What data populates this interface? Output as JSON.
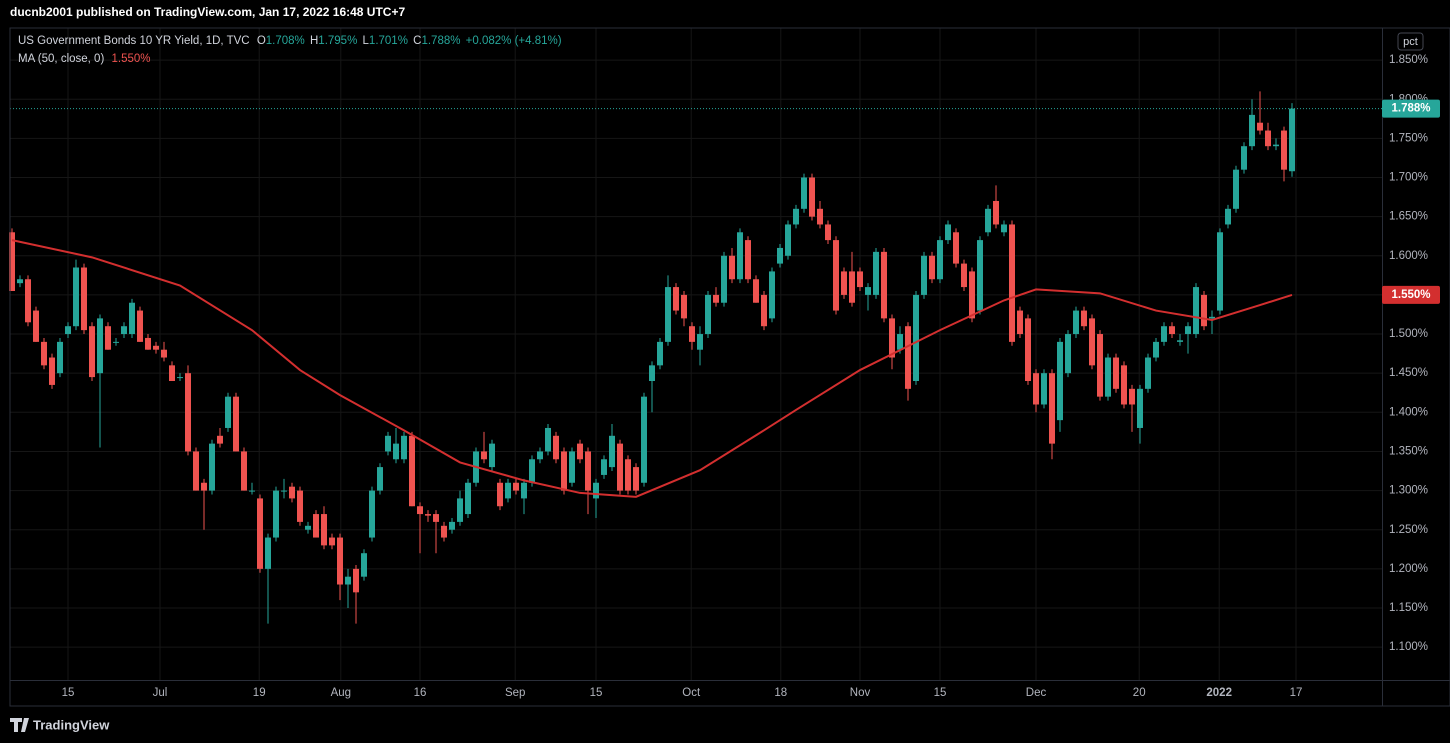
{
  "header": {
    "publisher": "ducnb2001 published on TradingView.com, Jan 17, 2022 16:48 UTC+7"
  },
  "chart_data": {
    "type": "candlestick",
    "title": "US Government Bonds 10 YR Yield, 1D, TVC",
    "ohlc_legend": [
      {
        "label": "O",
        "value": "1.708%"
      },
      {
        "label": "H",
        "value": "1.795%"
      },
      {
        "label": "L",
        "value": "1.701%"
      },
      {
        "label": "C",
        "value": "1.788%"
      }
    ],
    "change": "+0.082% (+4.81%)",
    "up_color": "#26a69a",
    "down_color": "#ef5350",
    "candles": [
      [
        1.63,
        1.635,
        1.555,
        1.555
      ],
      [
        1.565,
        1.575,
        1.56,
        1.57
      ],
      [
        1.57,
        1.575,
        1.51,
        1.515
      ],
      [
        1.53,
        1.535,
        1.49,
        1.49
      ],
      [
        1.49,
        1.495,
        1.455,
        1.46
      ],
      [
        1.47,
        1.475,
        1.43,
        1.435
      ],
      [
        1.45,
        1.495,
        1.445,
        1.49
      ],
      [
        1.5,
        1.515,
        1.495,
        1.51
      ],
      [
        1.51,
        1.595,
        1.505,
        1.585
      ],
      [
        1.585,
        1.59,
        1.5,
        1.505
      ],
      [
        1.51,
        1.515,
        1.44,
        1.445
      ],
      [
        1.45,
        1.525,
        1.355,
        1.52
      ],
      [
        1.51,
        1.515,
        1.48,
        1.48
      ],
      [
        1.49,
        1.495,
        1.485,
        1.49
      ],
      [
        1.5,
        1.515,
        1.495,
        1.51
      ],
      [
        1.5,
        1.545,
        1.495,
        1.54
      ],
      [
        1.53,
        1.535,
        1.49,
        1.49
      ],
      [
        1.495,
        1.5,
        1.48,
        1.48
      ],
      [
        1.485,
        1.49,
        1.475,
        1.48
      ],
      [
        1.48,
        1.49,
        1.465,
        1.47
      ],
      [
        1.46,
        1.465,
        1.44,
        1.44
      ],
      [
        1.445,
        1.45,
        1.44,
        1.445
      ],
      [
        1.45,
        1.46,
        1.345,
        1.35
      ],
      [
        1.35,
        1.355,
        1.3,
        1.3
      ],
      [
        1.31,
        1.315,
        1.25,
        1.3
      ],
      [
        1.3,
        1.365,
        1.295,
        1.36
      ],
      [
        1.37,
        1.38,
        1.355,
        1.36
      ],
      [
        1.38,
        1.425,
        1.375,
        1.42
      ],
      [
        1.42,
        1.425,
        1.35,
        1.35
      ],
      [
        1.35,
        1.355,
        1.3,
        1.3
      ],
      [
        1.3,
        1.31,
        1.295,
        1.3
      ],
      [
        1.29,
        1.295,
        1.195,
        1.2
      ],
      [
        1.2,
        1.245,
        1.13,
        1.24
      ],
      [
        1.24,
        1.305,
        1.235,
        1.3
      ],
      [
        1.3,
        1.315,
        1.29,
        1.3
      ],
      [
        1.305,
        1.31,
        1.285,
        1.29
      ],
      [
        1.3,
        1.305,
        1.255,
        1.26
      ],
      [
        1.25,
        1.26,
        1.245,
        1.255
      ],
      [
        1.27,
        1.275,
        1.24,
        1.24
      ],
      [
        1.27,
        1.28,
        1.225,
        1.23
      ],
      [
        1.24,
        1.245,
        1.225,
        1.23
      ],
      [
        1.24,
        1.245,
        1.16,
        1.18
      ],
      [
        1.18,
        1.2,
        1.15,
        1.19
      ],
      [
        1.2,
        1.205,
        1.13,
        1.17
      ],
      [
        1.19,
        1.225,
        1.185,
        1.22
      ],
      [
        1.24,
        1.305,
        1.235,
        1.3
      ],
      [
        1.3,
        1.335,
        1.295,
        1.33
      ],
      [
        1.35,
        1.375,
        1.345,
        1.37
      ],
      [
        1.34,
        1.38,
        1.335,
        1.36
      ],
      [
        1.34,
        1.375,
        1.335,
        1.37
      ],
      [
        1.37,
        1.375,
        1.28,
        1.28
      ],
      [
        1.28,
        1.285,
        1.22,
        1.27
      ],
      [
        1.27,
        1.275,
        1.26,
        1.268
      ],
      [
        1.27,
        1.275,
        1.22,
        1.26
      ],
      [
        1.255,
        1.26,
        1.235,
        1.24
      ],
      [
        1.25,
        1.265,
        1.245,
        1.26
      ],
      [
        1.26,
        1.3,
        1.255,
        1.29
      ],
      [
        1.27,
        1.315,
        1.265,
        1.31
      ],
      [
        1.31,
        1.355,
        1.305,
        1.35
      ],
      [
        1.35,
        1.375,
        1.335,
        1.34
      ],
      [
        1.33,
        1.365,
        1.325,
        1.36
      ],
      [
        1.31,
        1.315,
        1.275,
        1.28
      ],
      [
        1.29,
        1.315,
        1.285,
        1.31
      ],
      [
        1.31,
        1.315,
        1.295,
        1.3
      ],
      [
        1.29,
        1.315,
        1.27,
        1.31
      ],
      [
        1.31,
        1.345,
        1.305,
        1.34
      ],
      [
        1.34,
        1.355,
        1.335,
        1.35
      ],
      [
        1.35,
        1.385,
        1.345,
        1.38
      ],
      [
        1.37,
        1.375,
        1.335,
        1.34
      ],
      [
        1.35,
        1.355,
        1.295,
        1.3
      ],
      [
        1.31,
        1.355,
        1.305,
        1.35
      ],
      [
        1.36,
        1.365,
        1.335,
        1.34
      ],
      [
        1.35,
        1.355,
        1.27,
        1.3
      ],
      [
        1.29,
        1.315,
        1.265,
        1.31
      ],
      [
        1.32,
        1.345,
        1.315,
        1.34
      ],
      [
        1.33,
        1.385,
        1.325,
        1.37
      ],
      [
        1.36,
        1.365,
        1.295,
        1.3
      ],
      [
        1.34,
        1.345,
        1.295,
        1.3
      ],
      [
        1.33,
        1.335,
        1.295,
        1.3
      ],
      [
        1.31,
        1.425,
        1.305,
        1.42
      ],
      [
        1.44,
        1.465,
        1.4,
        1.46
      ],
      [
        1.46,
        1.495,
        1.455,
        1.49
      ],
      [
        1.49,
        1.575,
        1.485,
        1.56
      ],
      [
        1.56,
        1.565,
        1.525,
        1.53
      ],
      [
        1.55,
        1.555,
        1.51,
        1.52
      ],
      [
        1.51,
        1.515,
        1.48,
        1.49
      ],
      [
        1.48,
        1.51,
        1.46,
        1.5
      ],
      [
        1.5,
        1.555,
        1.495,
        1.55
      ],
      [
        1.55,
        1.56,
        1.535,
        1.54
      ],
      [
        1.54,
        1.605,
        1.535,
        1.6
      ],
      [
        1.6,
        1.61,
        1.565,
        1.57
      ],
      [
        1.57,
        1.635,
        1.565,
        1.63
      ],
      [
        1.62,
        1.625,
        1.565,
        1.57
      ],
      [
        1.57,
        1.575,
        1.54,
        1.54
      ],
      [
        1.55,
        1.555,
        1.505,
        1.51
      ],
      [
        1.52,
        1.585,
        1.515,
        1.58
      ],
      [
        1.59,
        1.615,
        1.585,
        1.61
      ],
      [
        1.6,
        1.645,
        1.595,
        1.64
      ],
      [
        1.64,
        1.665,
        1.635,
        1.66
      ],
      [
        1.66,
        1.705,
        1.655,
        1.7
      ],
      [
        1.7,
        1.705,
        1.645,
        1.65
      ],
      [
        1.66,
        1.67,
        1.635,
        1.64
      ],
      [
        1.64,
        1.645,
        1.615,
        1.62
      ],
      [
        1.62,
        1.625,
        1.525,
        1.53
      ],
      [
        1.58,
        1.585,
        1.545,
        1.55
      ],
      [
        1.58,
        1.605,
        1.535,
        1.54
      ],
      [
        1.58,
        1.585,
        1.555,
        1.56
      ],
      [
        1.55,
        1.565,
        1.53,
        1.56
      ],
      [
        1.55,
        1.61,
        1.545,
        1.605
      ],
      [
        1.605,
        1.61,
        1.515,
        1.52
      ],
      [
        1.52,
        1.525,
        1.455,
        1.47
      ],
      [
        1.48,
        1.51,
        1.475,
        1.5
      ],
      [
        1.51,
        1.515,
        1.415,
        1.43
      ],
      [
        1.44,
        1.555,
        1.435,
        1.55
      ],
      [
        1.55,
        1.605,
        1.545,
        1.6
      ],
      [
        1.6,
        1.605,
        1.565,
        1.57
      ],
      [
        1.57,
        1.625,
        1.565,
        1.62
      ],
      [
        1.62,
        1.645,
        1.615,
        1.64
      ],
      [
        1.63,
        1.635,
        1.585,
        1.59
      ],
      [
        1.59,
        1.595,
        1.555,
        1.56
      ],
      [
        1.58,
        1.585,
        1.515,
        1.52
      ],
      [
        1.53,
        1.625,
        1.525,
        1.62
      ],
      [
        1.63,
        1.665,
        1.625,
        1.66
      ],
      [
        1.67,
        1.69,
        1.635,
        1.64
      ],
      [
        1.63,
        1.645,
        1.625,
        1.64
      ],
      [
        1.64,
        1.645,
        1.485,
        1.49
      ],
      [
        1.53,
        1.535,
        1.495,
        1.5
      ],
      [
        1.52,
        1.525,
        1.435,
        1.44
      ],
      [
        1.45,
        1.455,
        1.4,
        1.41
      ],
      [
        1.41,
        1.455,
        1.405,
        1.45
      ],
      [
        1.45,
        1.455,
        1.34,
        1.36
      ],
      [
        1.39,
        1.495,
        1.375,
        1.49
      ],
      [
        1.45,
        1.505,
        1.445,
        1.5
      ],
      [
        1.5,
        1.535,
        1.495,
        1.53
      ],
      [
        1.53,
        1.535,
        1.505,
        1.51
      ],
      [
        1.52,
        1.525,
        1.455,
        1.46
      ],
      [
        1.5,
        1.505,
        1.415,
        1.42
      ],
      [
        1.42,
        1.475,
        1.415,
        1.47
      ],
      [
        1.47,
        1.475,
        1.425,
        1.43
      ],
      [
        1.46,
        1.465,
        1.405,
        1.41
      ],
      [
        1.43,
        1.435,
        1.375,
        1.41
      ],
      [
        1.38,
        1.435,
        1.36,
        1.43
      ],
      [
        1.43,
        1.475,
        1.425,
        1.47
      ],
      [
        1.47,
        1.495,
        1.465,
        1.49
      ],
      [
        1.49,
        1.515,
        1.485,
        1.51
      ],
      [
        1.51,
        1.515,
        1.495,
        1.5
      ],
      [
        1.49,
        1.5,
        1.485,
        1.492
      ],
      [
        1.5,
        1.515,
        1.475,
        1.51
      ],
      [
        1.5,
        1.565,
        1.495,
        1.56
      ],
      [
        1.55,
        1.555,
        1.505,
        1.51
      ],
      [
        1.52,
        1.53,
        1.5,
        1.522
      ],
      [
        1.53,
        1.635,
        1.525,
        1.63
      ],
      [
        1.64,
        1.665,
        1.635,
        1.66
      ],
      [
        1.66,
        1.715,
        1.655,
        1.71
      ],
      [
        1.71,
        1.745,
        1.705,
        1.74
      ],
      [
        1.74,
        1.8,
        1.735,
        1.78
      ],
      [
        1.77,
        1.81,
        1.755,
        1.76
      ],
      [
        1.76,
        1.77,
        1.735,
        1.74
      ],
      [
        1.74,
        1.75,
        1.735,
        1.742
      ],
      [
        1.76,
        1.765,
        1.695,
        1.71
      ],
      [
        1.708,
        1.795,
        1.701,
        1.788
      ]
    ],
    "indicator": {
      "name": "MA (50, close, 0)",
      "value_label": "1.550%",
      "value": 1.55,
      "color": "#d32f2f",
      "x": [
        0,
        10,
        21,
        30,
        36,
        41,
        49,
        56,
        64,
        71,
        78,
        86,
        94,
        98,
        106,
        116,
        124,
        128,
        136,
        143,
        150,
        156,
        160
      ],
      "values": [
        1.62,
        1.598,
        1.562,
        1.505,
        1.454,
        1.422,
        1.377,
        1.336,
        1.313,
        1.297,
        1.292,
        1.326,
        1.377,
        1.403,
        1.454,
        1.505,
        1.543,
        1.557,
        1.552,
        1.53,
        1.518,
        1.537,
        1.55
      ]
    },
    "last_price": {
      "value": 1.788,
      "label": "1.788%"
    },
    "scale_label": "pct",
    "xlim": [
      -0.25,
      171.25
    ],
    "xticks": [
      {
        "value": 7,
        "label": "15"
      },
      {
        "value": 18.5,
        "label": "Jul"
      },
      {
        "value": 30.9,
        "label": "19"
      },
      {
        "value": 41.1,
        "label": "Aug"
      },
      {
        "value": 51,
        "label": "16"
      },
      {
        "value": 62.9,
        "label": "Sep"
      },
      {
        "value": 73,
        "label": "15"
      },
      {
        "value": 84.9,
        "label": "Oct"
      },
      {
        "value": 96.1,
        "label": "18"
      },
      {
        "value": 106,
        "label": "Nov"
      },
      {
        "value": 116,
        "label": "15"
      },
      {
        "value": 128,
        "label": "Dec"
      },
      {
        "value": 140.9,
        "label": "20"
      },
      {
        "value": 150.9,
        "label": "2022"
      },
      {
        "value": 160.5,
        "label": "17"
      }
    ],
    "ylim": [
      1.058,
      1.891
    ],
    "yticks": [
      {
        "value": 1.1,
        "label": "1.100%"
      },
      {
        "value": 1.15,
        "label": "1.150%"
      },
      {
        "value": 1.2,
        "label": "1.200%"
      },
      {
        "value": 1.25,
        "label": "1.250%"
      },
      {
        "value": 1.3,
        "label": "1.300%"
      },
      {
        "value": 1.35,
        "label": "1.350%"
      },
      {
        "value": 1.4,
        "label": "1.400%"
      },
      {
        "value": 1.45,
        "label": "1.450%"
      },
      {
        "value": 1.5,
        "label": "1.500%"
      },
      {
        "value": 1.55,
        "label": "1.550%"
      },
      {
        "value": 1.6,
        "label": "1.600%"
      },
      {
        "value": 1.65,
        "label": "1.650%"
      },
      {
        "value": 1.7,
        "label": "1.700%"
      },
      {
        "value": 1.75,
        "label": "1.750%"
      },
      {
        "value": 1.8,
        "label": "1.800%"
      },
      {
        "value": 1.85,
        "label": "1.850%"
      }
    ],
    "grid": true
  },
  "footer": {
    "logo": "TradingView"
  }
}
